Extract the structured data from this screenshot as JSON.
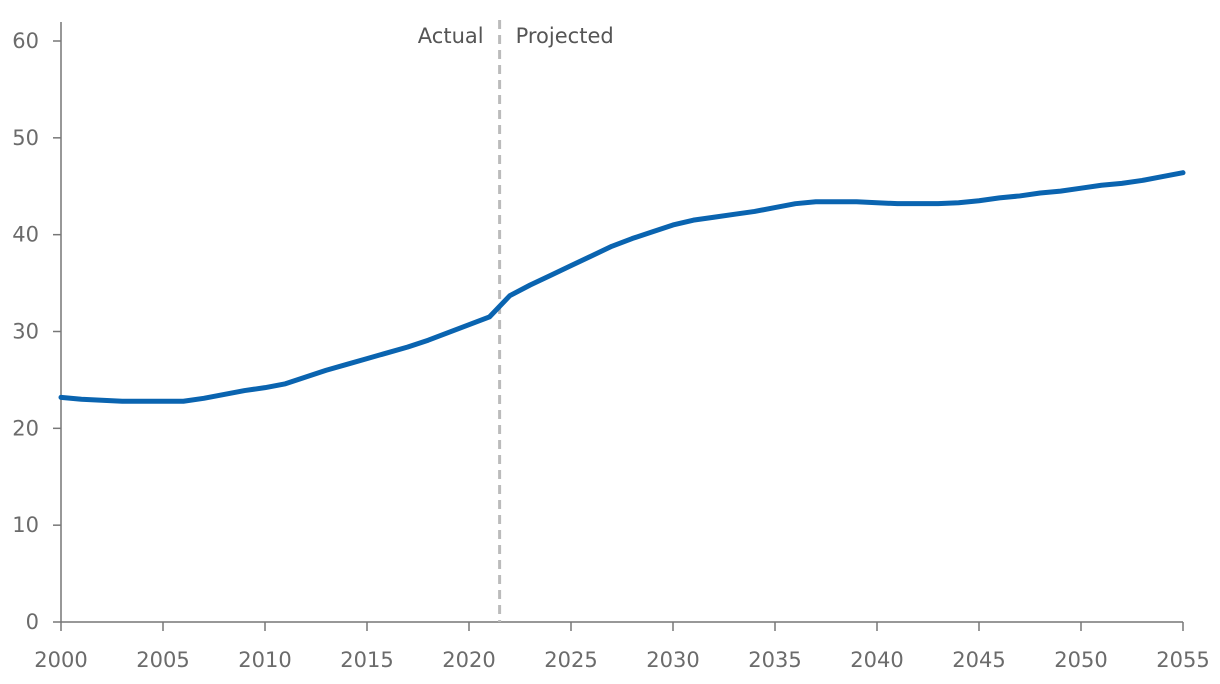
{
  "chart_data": {
    "type": "line",
    "title": "",
    "xlabel": "",
    "ylabel": "",
    "xlim": [
      2000,
      2055
    ],
    "ylim": [
      0,
      60
    ],
    "x_ticks": [
      2000,
      2005,
      2010,
      2015,
      2020,
      2025,
      2030,
      2035,
      2040,
      2045,
      2050,
      2055
    ],
    "y_ticks": [
      0,
      10,
      20,
      30,
      40,
      50,
      60
    ],
    "grid": false,
    "legend": "none",
    "divider": {
      "x": 2021.5,
      "style": "dashed",
      "color": "#bbbbbb",
      "left_label": "Actual",
      "right_label": "Projected"
    },
    "series": [
      {
        "color": "#0a64b0",
        "x": [
          2000,
          2001,
          2002,
          2003,
          2004,
          2005,
          2006,
          2007,
          2008,
          2009,
          2010,
          2011,
          2012,
          2013,
          2014,
          2015,
          2016,
          2017,
          2018,
          2019,
          2020,
          2021,
          2022,
          2023,
          2024,
          2025,
          2026,
          2027,
          2028,
          2029,
          2030,
          2031,
          2032,
          2033,
          2034,
          2035,
          2036,
          2037,
          2038,
          2039,
          2040,
          2041,
          2042,
          2043,
          2044,
          2045,
          2046,
          2047,
          2048,
          2049,
          2050,
          2051,
          2052,
          2053,
          2054,
          2055
        ],
        "values": [
          23.2,
          23.0,
          22.9,
          22.8,
          22.8,
          22.8,
          22.8,
          23.1,
          23.5,
          23.9,
          24.2,
          24.6,
          25.3,
          26.0,
          26.6,
          27.2,
          27.8,
          28.4,
          29.1,
          29.9,
          30.7,
          31.5,
          33.7,
          34.8,
          35.8,
          36.8,
          37.8,
          38.8,
          39.6,
          40.3,
          41.0,
          41.5,
          41.8,
          42.1,
          42.4,
          42.8,
          43.2,
          43.4,
          43.4,
          43.4,
          43.3,
          43.2,
          43.2,
          43.2,
          43.3,
          43.5,
          43.8,
          44.0,
          44.3,
          44.5,
          44.8,
          45.1,
          45.3,
          45.6,
          46.0,
          46.4
        ]
      }
    ]
  }
}
